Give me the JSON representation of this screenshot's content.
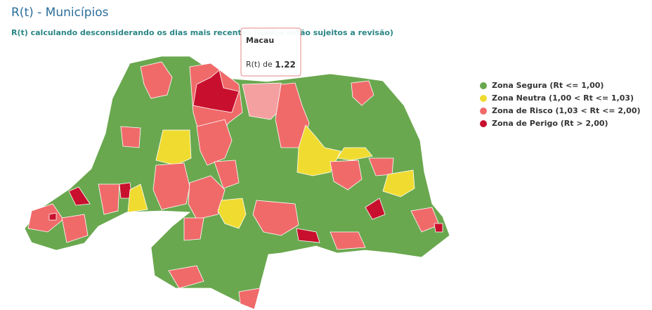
{
  "header": {
    "title": "R(t) - Municípios",
    "subtitle": "R(t) calculando desconsiderando os dias mais recentes (dados estão sujeitos a revisão)"
  },
  "tooltip": {
    "name": "Macau",
    "label": "R(t) de",
    "value": 1.22
  },
  "legend": {
    "items": [
      {
        "label": "Zona Segura (Rt <= 1,00)",
        "color": "#6aa84f"
      },
      {
        "label": "Zona Neutra (1,00 < Rt <= 1,03)",
        "color": "#f0dc30"
      },
      {
        "label": "Zona de Risco (1,03 < Rt <= 2,00)",
        "color": "#f06a6a"
      },
      {
        "label": "Zona de Perigo (Rt > 2,00)",
        "color": "#c8102e"
      }
    ]
  }
}
